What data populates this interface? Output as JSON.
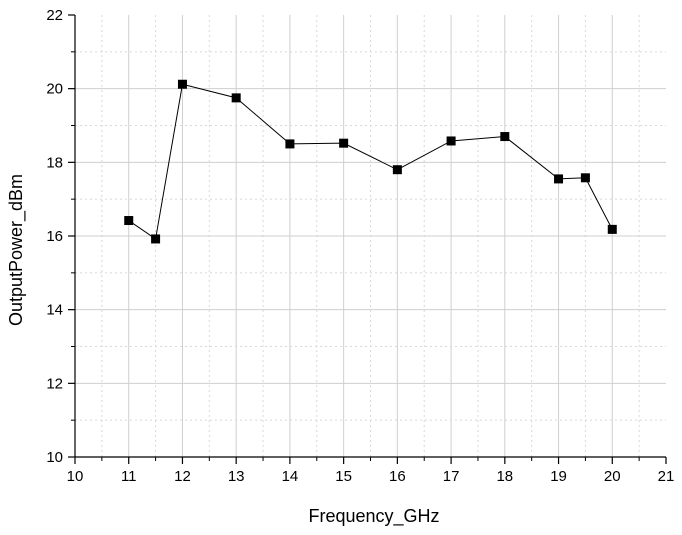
{
  "chart_data": {
    "type": "line",
    "xlabel": "Frequency_GHz",
    "ylabel": "OutputPower_dBm",
    "xlim": [
      10,
      21
    ],
    "ylim": [
      10,
      22
    ],
    "x_major_ticks": [
      10,
      11,
      12,
      13,
      14,
      15,
      16,
      17,
      18,
      19,
      20,
      21
    ],
    "y_major_ticks": [
      10,
      12,
      14,
      16,
      18,
      20,
      22
    ],
    "grid": true,
    "marker": "square",
    "series": [
      {
        "x": [
          11,
          11.5,
          12,
          13,
          14,
          15,
          16,
          17,
          18,
          19,
          19.5,
          20
        ],
        "y": [
          16.42,
          15.92,
          20.12,
          19.75,
          18.5,
          18.52,
          17.8,
          18.58,
          18.7,
          17.55,
          17.58,
          16.18
        ]
      }
    ]
  }
}
